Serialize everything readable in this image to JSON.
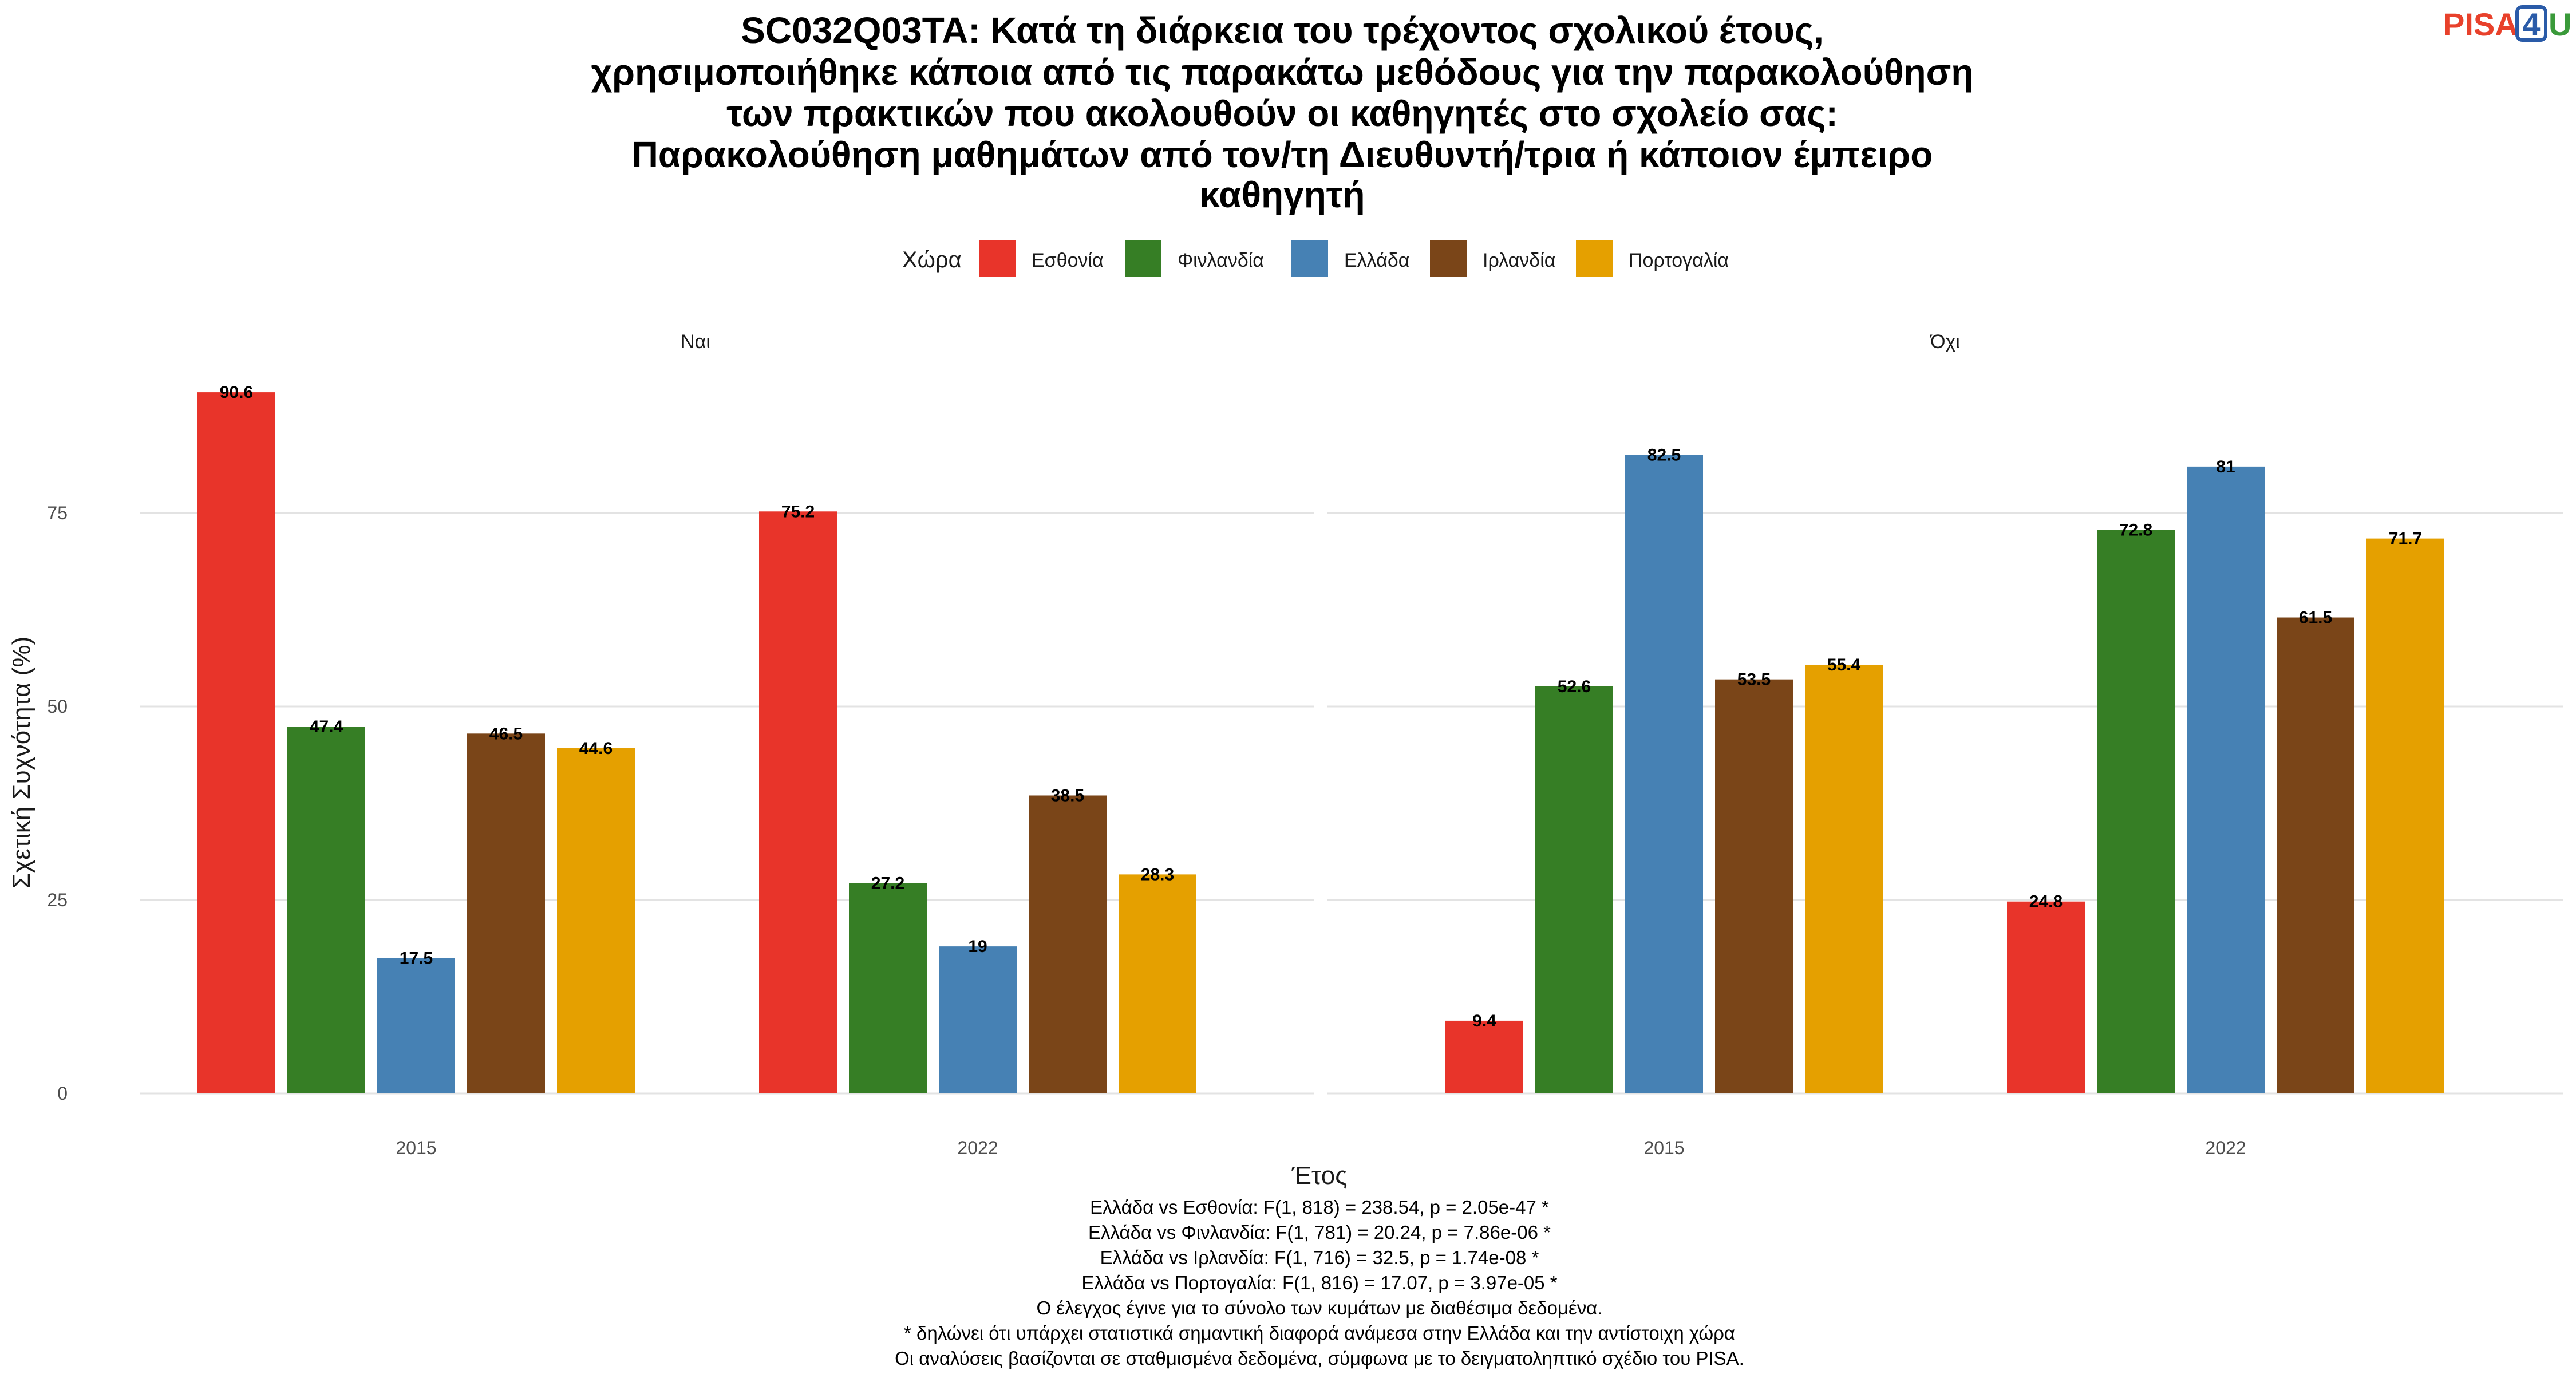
{
  "logo": {
    "text_left": "PISA",
    "text_box": "4",
    "text_right": "U",
    "colors": {
      "left": "#e8412b",
      "box": "#2a5ba8",
      "right": "#3a9a3a"
    }
  },
  "chart_data": {
    "type": "bar",
    "title_lines": [
      "SC032Q03TA: Κατά τη διάρκεια του τρέχοντος σχολικού έτους,",
      "χρησιμοποιήθηκε κάποια από τις παρακάτω μεθόδους για την παρακολούθηση",
      "των πρακτικών που ακολουθούν οι καθηγητές στο σχολείο σας:",
      "Παρακολούθηση μαθημάτων από τον/τη Διευθυντή/τρια ή κάποιον έμπειρο",
      "καθηγητή"
    ],
    "legend_title": "Χώρα",
    "legend_position": "top",
    "series": [
      {
        "name": "Εσθονία",
        "color": "#e8342a"
      },
      {
        "name": "Φινλανδία",
        "color": "#367e25"
      },
      {
        "name": "Ελλάδα",
        "color": "#4681b4"
      },
      {
        "name": "Ιρλανδία",
        "color": "#7a4518"
      },
      {
        "name": "Πορτογαλία",
        "color": "#e5a000"
      }
    ],
    "categories": [
      "2015",
      "2022"
    ],
    "facets": [
      {
        "label": "Ναι",
        "values": [
          [
            90.6,
            47.4,
            17.5,
            46.5,
            44.6
          ],
          [
            75.2,
            27.2,
            19,
            38.5,
            28.3
          ]
        ],
        "value_labels": [
          [
            "90.6",
            "47.4",
            "17.5",
            "46.5",
            "44.6"
          ],
          [
            "75.2",
            "27.2",
            "19",
            "38.5",
            "28.3"
          ]
        ]
      },
      {
        "label": "Όχι",
        "values": [
          [
            9.4,
            52.6,
            82.5,
            53.5,
            55.4
          ],
          [
            24.8,
            72.8,
            81,
            61.5,
            71.7
          ]
        ],
        "value_labels": [
          [
            "9.4",
            "52.6",
            "82.5",
            "53.5",
            "55.4"
          ],
          [
            "24.8",
            "72.8",
            "81",
            "61.5",
            "71.7"
          ]
        ]
      }
    ],
    "xlabel": "Έτος",
    "ylabel": "Σχετική Συχνότητα (%)",
    "ylim": [
      0,
      90.6
    ],
    "yticks": [
      0,
      25,
      50,
      75
    ],
    "grid": true
  },
  "caption_lines": [
    "Ελλάδα vs Εσθονία: F(1, 818) = 238.54, p = 2.05e-47 *",
    "Ελλάδα vs Φινλανδία: F(1, 781) = 20.24, p = 7.86e-06 *",
    "Ελλάδα vs Ιρλανδία: F(1, 716) = 32.5, p = 1.74e-08 *",
    "Ελλάδα vs Πορτογαλία: F(1, 816) = 17.07, p = 3.97e-05 *",
    "Ο έλεγχος έγινε για το σύνολο των κυμάτων με διαθέσιμα δεδομένα.",
    "* δηλώνει ότι υπάρχει στατιστικά σημαντική διαφορά ανάμεσα στην Ελλάδα και την αντίστοιχη χώρα",
    "Οι αναλύσεις βασίζονται σε σταθμισμένα δεδομένα, σύμφωνα με το δειγματοληπτικό σχέδιο του PISA."
  ]
}
